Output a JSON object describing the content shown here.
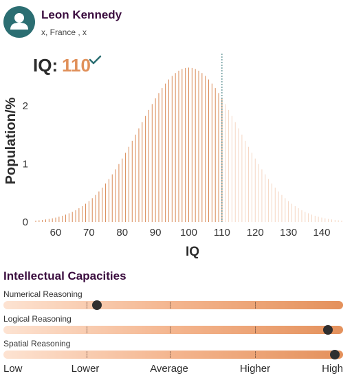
{
  "profile": {
    "name": "Leon Kennedy",
    "location": "x, France , x",
    "avatar_icon": "person-icon"
  },
  "iq": {
    "label": "IQ:",
    "value": "110",
    "check_icon": "check-icon"
  },
  "chart_data": {
    "type": "bar",
    "xlabel": "IQ",
    "ylabel": "Population/%",
    "xlim": [
      54,
      146
    ],
    "ylim": [
      0,
      2.7
    ],
    "x_ticks": [
      "60",
      "70",
      "80",
      "90",
      "100",
      "110",
      "120",
      "130",
      "140"
    ],
    "y_ticks": [
      "0",
      "1",
      "2"
    ],
    "distribution": {
      "mean": 100,
      "sd": 15
    },
    "marker_x": 110,
    "colors": {
      "filled": "#d98a56",
      "faded": "#f5d6c2",
      "marker": "#2b6e72"
    }
  },
  "capacities": {
    "title": "Intellectual Capacities",
    "items": [
      {
        "label": "Numerical Reasoning",
        "level": 0.275
      },
      {
        "label": "Logical Reasoning",
        "level": 0.955
      },
      {
        "label": "Spatial Reasoning",
        "level": 0.975
      }
    ],
    "scale": [
      "Low",
      "Lower",
      "Average",
      "Higher",
      "High"
    ]
  }
}
